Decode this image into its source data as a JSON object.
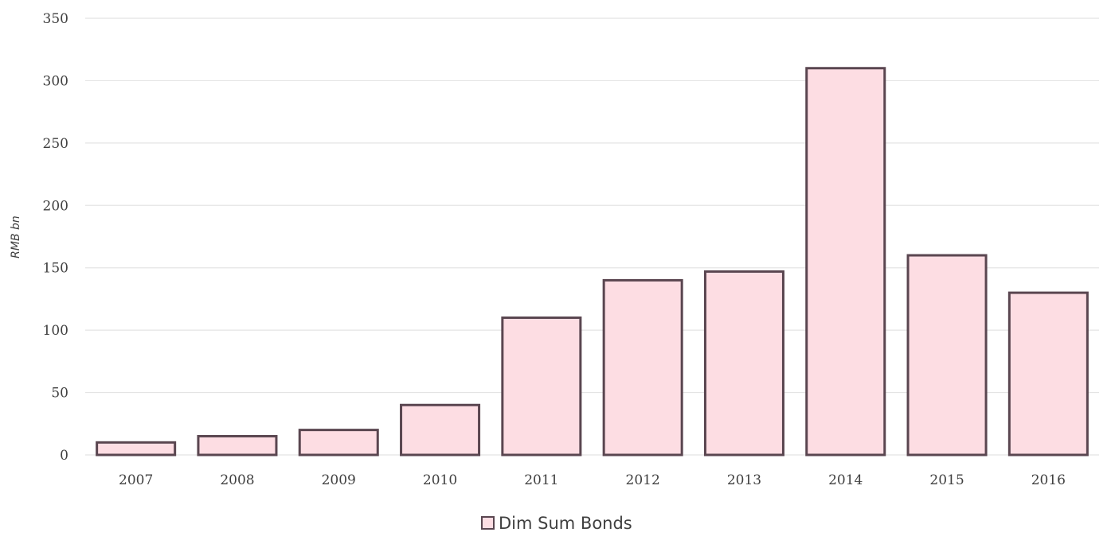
{
  "chart_data": {
    "type": "bar",
    "categories": [
      "2007",
      "2008",
      "2009",
      "2010",
      "2011",
      "2012",
      "2013",
      "2014",
      "2015",
      "2016"
    ],
    "series": [
      {
        "name": "Dim Sum Bonds",
        "values": [
          10,
          15,
          20,
          40,
          110,
          140,
          147,
          310,
          160,
          130
        ]
      }
    ],
    "ylabel": "RMB bn",
    "ylim": [
      0,
      350
    ],
    "yticks": [
      "0",
      "50",
      "100",
      "150",
      "200",
      "250",
      "300",
      "350"
    ],
    "grid": true,
    "legend_position": "bottom-center",
    "colors": {
      "bar_fill": "#fddde3",
      "bar_stroke": "#5a4650",
      "grid": "#e4e4e4",
      "text": "#404040"
    }
  }
}
